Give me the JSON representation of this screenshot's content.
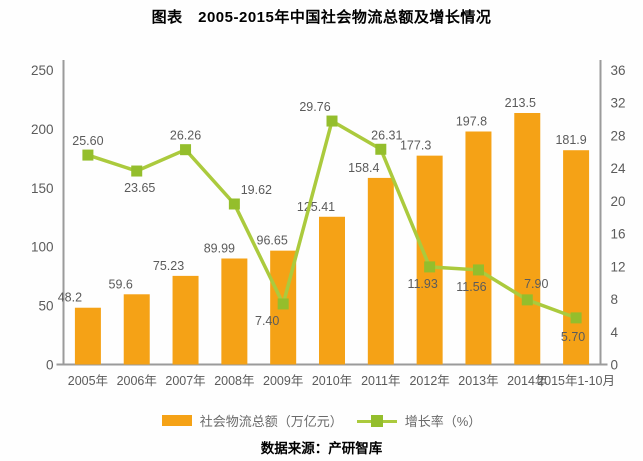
{
  "source": "数据来源：产研智库",
  "colors": {
    "bar": "#F5A216",
    "line": "#ABCA3D",
    "marker": "#94BE2C",
    "data_label": "#5b5b5b",
    "axis": "#9b9b9b"
  },
  "chart_data": {
    "type": "bar+line combo",
    "title": "图表　2005-2015年中国社会物流总额及增长情况",
    "categories": [
      "2005年",
      "2006年",
      "2007年",
      "2008年",
      "2009年",
      "2010年",
      "2011年",
      "2012年",
      "2013年",
      "2014年",
      "2015年1-10月"
    ],
    "series": [
      {
        "name": "社会物流总额（万亿元）",
        "type": "bar",
        "axis": "left",
        "values": [
          48.2,
          59.6,
          75.23,
          89.99,
          96.65,
          125.41,
          158.4,
          177.3,
          197.8,
          213.5,
          181.9
        ],
        "labels": [
          "48.2",
          "59.6",
          "75.23",
          "89.99",
          "96.65",
          "125.41",
          "158.4",
          "177.3",
          "197.8",
          "213.5",
          "181.9"
        ]
      },
      {
        "name": "增长率（%）",
        "type": "line",
        "axis": "right",
        "values": [
          25.6,
          23.65,
          26.26,
          19.62,
          7.4,
          29.76,
          26.31,
          11.93,
          11.56,
          7.9,
          5.7
        ],
        "labels": [
          "25.60",
          "23.65",
          "26.26",
          "19.62",
          "7.40",
          "29.76",
          "26.31",
          "11.93",
          "11.56",
          "7.90",
          "5.70"
        ]
      }
    ],
    "left_axis": {
      "min": 0,
      "max": 250,
      "step": 50,
      "ticks": [
        0,
        50,
        100,
        150,
        200,
        250
      ]
    },
    "right_axis": {
      "min": 0,
      "max": 36,
      "step": 4,
      "ticks": [
        0,
        4,
        8,
        12,
        16,
        20,
        24,
        28,
        32,
        36
      ]
    },
    "grid": "off",
    "legend_position": "bottom"
  }
}
